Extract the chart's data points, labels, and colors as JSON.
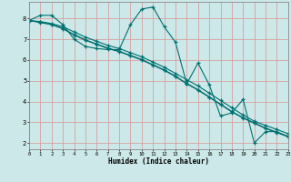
{
  "xlabel": "Humidex (Indice chaleur)",
  "bg_color": "#cde8e8",
  "line_color": "#007070",
  "grid_color": "#d8a0a0",
  "xlim": [
    0,
    23
  ],
  "ylim": [
    1.7,
    8.8
  ],
  "xticks": [
    0,
    1,
    2,
    3,
    4,
    5,
    6,
    7,
    8,
    9,
    10,
    11,
    12,
    13,
    14,
    15,
    16,
    17,
    18,
    19,
    20,
    21,
    22,
    23
  ],
  "yticks": [
    2,
    3,
    4,
    5,
    6,
    7,
    8
  ],
  "line1_x": [
    0,
    1,
    2,
    3,
    4,
    5,
    6,
    7,
    8,
    9,
    10,
    11,
    12,
    13,
    14,
    15,
    16,
    17,
    18,
    19,
    20,
    21,
    22,
    23
  ],
  "line1_y": [
    7.9,
    8.15,
    8.15,
    7.7,
    7.0,
    6.65,
    6.55,
    6.5,
    6.5,
    7.7,
    8.45,
    8.55,
    7.6,
    6.85,
    4.85,
    5.85,
    4.8,
    3.3,
    3.45,
    4.1,
    2.0,
    2.55,
    2.55,
    2.3
  ],
  "line2_x": [
    0,
    1,
    2,
    3,
    4,
    5,
    6,
    7,
    8,
    9,
    10,
    11,
    12,
    13,
    14,
    15,
    16,
    17,
    18,
    19,
    20,
    21,
    22,
    23
  ],
  "line2_y": [
    7.9,
    7.85,
    7.75,
    7.6,
    7.35,
    7.1,
    6.9,
    6.7,
    6.55,
    6.35,
    6.15,
    5.9,
    5.65,
    5.35,
    5.05,
    4.75,
    4.4,
    4.05,
    3.7,
    3.35,
    3.05,
    2.85,
    2.65,
    2.45
  ],
  "line3_x": [
    0,
    1,
    2,
    3,
    4,
    5,
    6,
    7,
    8,
    9,
    10,
    11,
    12,
    13,
    14,
    15,
    16,
    17,
    18,
    19,
    20,
    21,
    22,
    23
  ],
  "line3_y": [
    7.9,
    7.8,
    7.7,
    7.5,
    7.2,
    6.95,
    6.75,
    6.55,
    6.4,
    6.2,
    6.0,
    5.75,
    5.5,
    5.2,
    4.85,
    4.55,
    4.2,
    3.85,
    3.5,
    3.2,
    2.95,
    2.7,
    2.5,
    2.3
  ],
  "line4_x": [
    0,
    1,
    2,
    3,
    4,
    5,
    6,
    7,
    8,
    9,
    10,
    11,
    12,
    13,
    14,
    15,
    16,
    17,
    18,
    19,
    20,
    21,
    22,
    23
  ],
  "line4_y": [
    7.9,
    7.82,
    7.72,
    7.52,
    7.22,
    6.97,
    6.77,
    6.57,
    6.42,
    6.22,
    6.02,
    5.77,
    5.52,
    5.22,
    4.87,
    4.57,
    4.22,
    3.87,
    3.52,
    3.22,
    2.97,
    2.72,
    2.52,
    2.32
  ]
}
